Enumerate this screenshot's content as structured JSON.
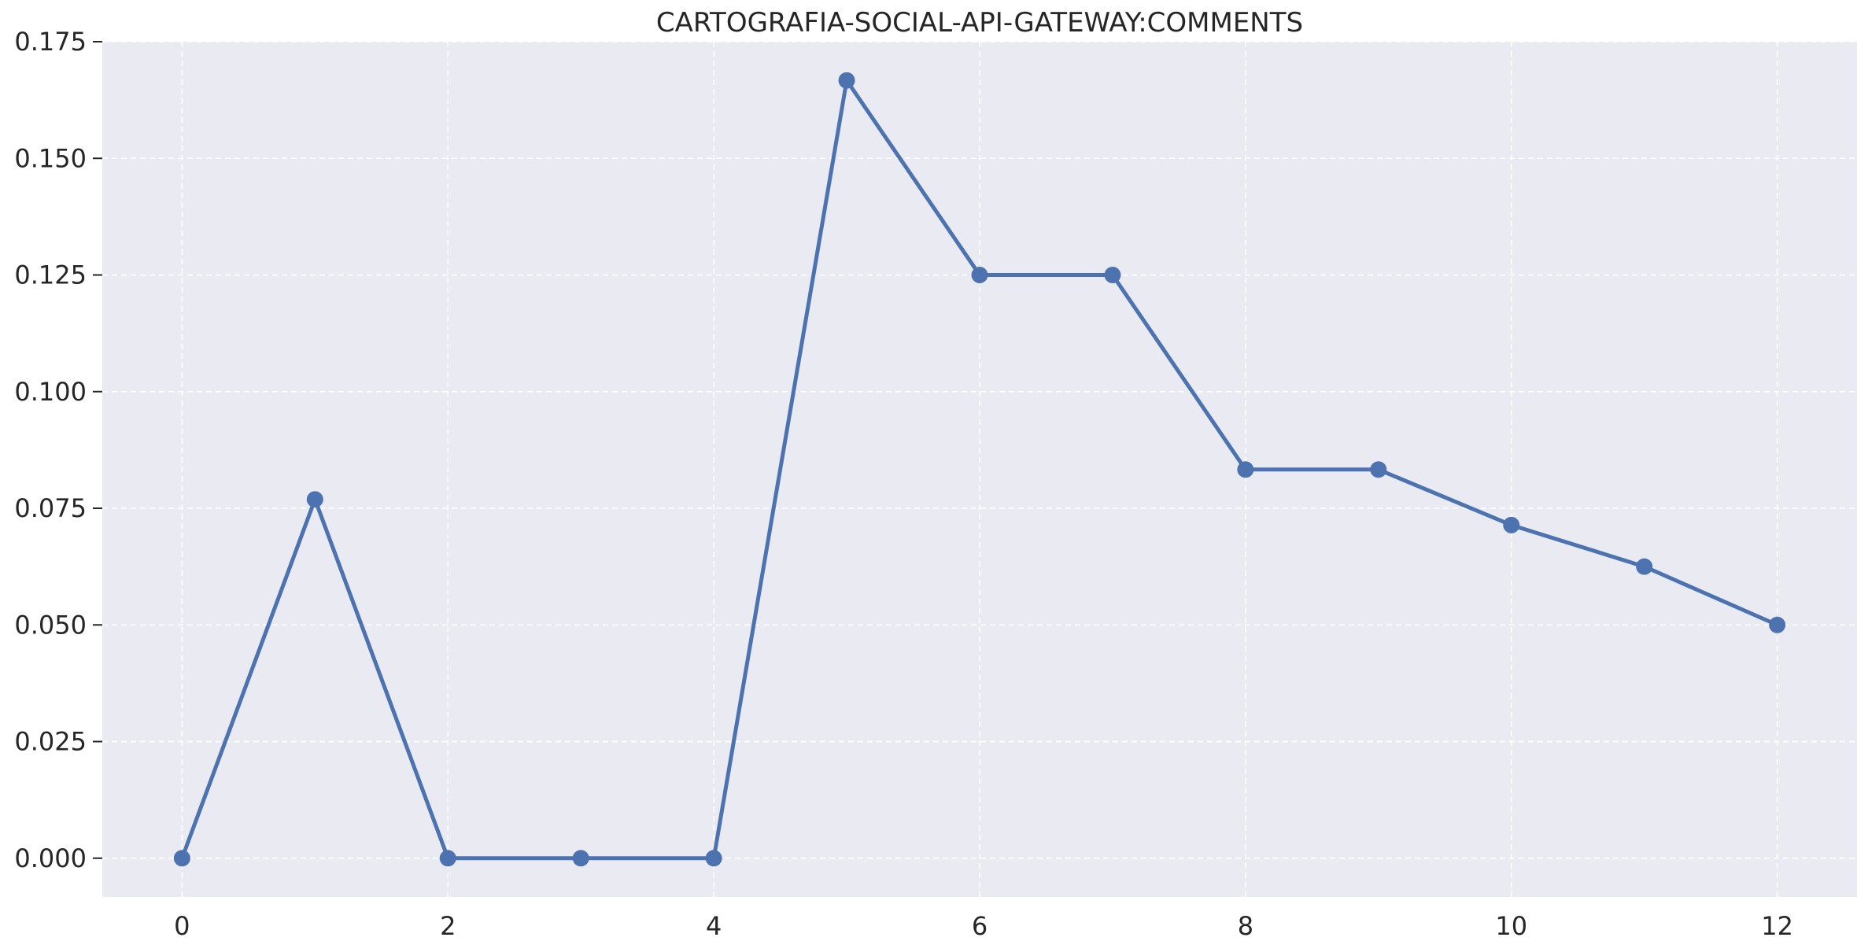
{
  "chart_data": {
    "type": "line",
    "title": "CARTOGRAFIA-SOCIAL-API-GATEWAY:COMMENTS",
    "xlabel": "",
    "ylabel": "",
    "x": [
      0,
      1,
      2,
      3,
      4,
      5,
      6,
      7,
      8,
      9,
      10,
      11,
      12
    ],
    "series": [
      {
        "values": [
          0.0,
          0.0769,
          0.0,
          0.0,
          0.0,
          0.1667,
          0.125,
          0.125,
          0.0833,
          0.0833,
          0.0714,
          0.0625,
          0.05
        ]
      }
    ],
    "xlim": [
      -0.6,
      12.6
    ],
    "ylim": [
      -0.0083,
      0.175
    ],
    "xticks": [
      0,
      2,
      4,
      6,
      8,
      10,
      12
    ],
    "xtick_labels": [
      "0",
      "2",
      "4",
      "6",
      "8",
      "10",
      "12"
    ],
    "yticks": [
      0.0,
      0.025,
      0.05,
      0.075,
      0.1,
      0.125,
      0.15,
      0.175
    ],
    "ytick_labels": [
      "0.000",
      "0.025",
      "0.050",
      "0.075",
      "0.100",
      "0.125",
      "0.150",
      "0.175"
    ],
    "grid": true,
    "legend": "none",
    "colors": {
      "line": "#4c72b0",
      "plot_background": "#eaeaf2",
      "grid": "#ffffff",
      "text": "#262626"
    }
  }
}
